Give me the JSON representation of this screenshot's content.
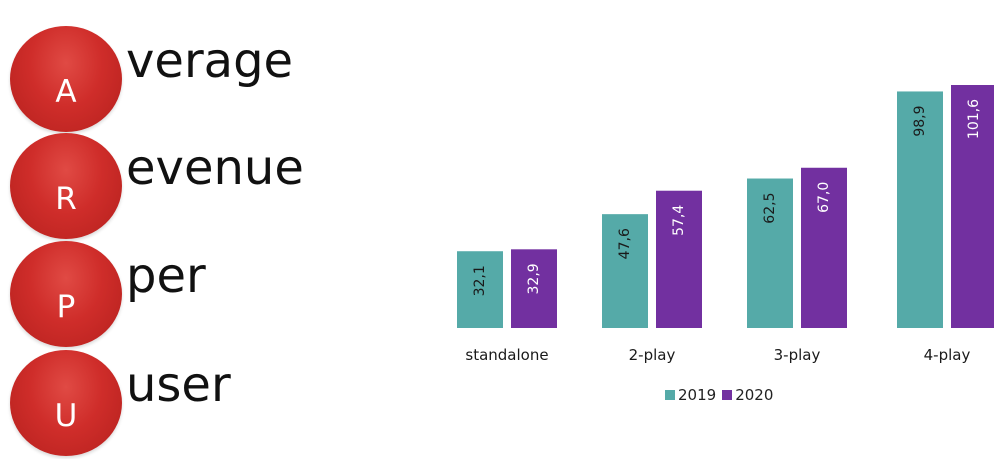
{
  "acronym": [
    {
      "letter": "A",
      "word": "verage"
    },
    {
      "letter": "R",
      "word": "evenue"
    },
    {
      "letter": "P",
      "word": "per"
    },
    {
      "letter": "U",
      "word": "user"
    }
  ],
  "colors": {
    "circle": "#cf2d2a",
    "series_2019": "#55aaa8",
    "series_2020": "#7230a0"
  },
  "chart_data": {
    "type": "bar",
    "categories": [
      "standalone",
      "2-play",
      "3-play",
      "4-play"
    ],
    "series": [
      {
        "name": "2019",
        "values": [
          32.1,
          47.6,
          62.5,
          98.9
        ],
        "labels": [
          "32,1",
          "47,6",
          "62,5",
          "98,9"
        ]
      },
      {
        "name": "2020",
        "values": [
          32.9,
          57.4,
          67.0,
          101.6
        ],
        "labels": [
          "32,9",
          "57,4",
          "67,0",
          "101,6"
        ]
      }
    ],
    "title": "",
    "xlabel": "",
    "ylabel": "",
    "ylim": [
      0,
      101.6
    ],
    "legend": "bottom",
    "grid": false
  }
}
